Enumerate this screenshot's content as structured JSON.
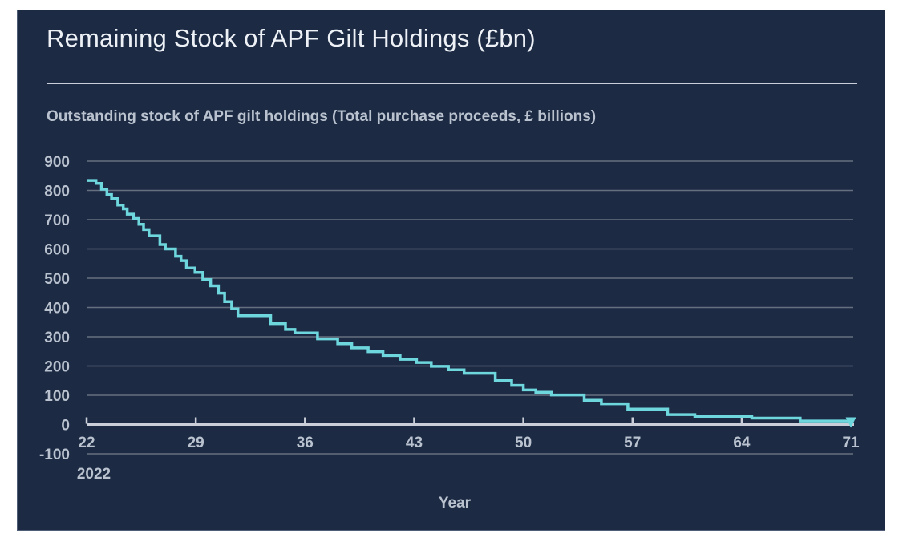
{
  "window": {
    "background": "#ffffff"
  },
  "panel": {
    "background": "#1c2a44",
    "border": "#4f5e76"
  },
  "chart_data": {
    "type": "line",
    "step": true,
    "title": "Remaining Stock of APF Gilt Holdings (£bn)",
    "subtitle": "Outstanding stock of APF gilt holdings (Total purchase proceeds, £ billions)",
    "xlabel": "Year",
    "x_start_sublabel": "2022",
    "xlim": [
      22,
      71
    ],
    "ylim": [
      -100,
      900
    ],
    "xticks": [
      22,
      29,
      36,
      43,
      50,
      57,
      64,
      71
    ],
    "yticks": [
      900,
      800,
      700,
      600,
      500,
      400,
      300,
      200,
      100,
      0,
      -100
    ],
    "grid": true,
    "legend_position": "none",
    "end_marker": "down-arrow",
    "colors": {
      "line": "#6ed7dd",
      "grid": "#666f80",
      "axis": "#c9ced8",
      "text": "#b9c2ce",
      "title": "#eef2f7"
    },
    "series": [
      {
        "name": "Remaining APF gilt holdings (£bn)",
        "points": [
          [
            22.0,
            834
          ],
          [
            22.6,
            824
          ],
          [
            22.95,
            804
          ],
          [
            23.3,
            786
          ],
          [
            23.6,
            772
          ],
          [
            24.0,
            750
          ],
          [
            24.35,
            737
          ],
          [
            24.6,
            719
          ],
          [
            25.0,
            704
          ],
          [
            25.35,
            684
          ],
          [
            25.65,
            666
          ],
          [
            26.0,
            645
          ],
          [
            26.7,
            615
          ],
          [
            27.05,
            600
          ],
          [
            27.7,
            575
          ],
          [
            28.05,
            560
          ],
          [
            28.4,
            535
          ],
          [
            28.95,
            520
          ],
          [
            29.45,
            495
          ],
          [
            29.95,
            474
          ],
          [
            30.45,
            449
          ],
          [
            30.85,
            420
          ],
          [
            31.3,
            395
          ],
          [
            31.7,
            372
          ],
          [
            33.8,
            345
          ],
          [
            34.75,
            325
          ],
          [
            35.35,
            313
          ],
          [
            36.8,
            293
          ],
          [
            38.1,
            276
          ],
          [
            39.0,
            262
          ],
          [
            40.05,
            249
          ],
          [
            41.0,
            236
          ],
          [
            42.1,
            223
          ],
          [
            43.15,
            212
          ],
          [
            44.1,
            199
          ],
          [
            45.2,
            187
          ],
          [
            46.2,
            175
          ],
          [
            48.2,
            150
          ],
          [
            49.25,
            134
          ],
          [
            50.0,
            118
          ],
          [
            50.8,
            110
          ],
          [
            51.8,
            101
          ],
          [
            53.9,
            83
          ],
          [
            55.0,
            71
          ],
          [
            56.7,
            53
          ],
          [
            59.25,
            34
          ],
          [
            61.0,
            28
          ],
          [
            64.65,
            22
          ],
          [
            67.75,
            12
          ],
          [
            71.0,
            0
          ]
        ]
      }
    ]
  }
}
